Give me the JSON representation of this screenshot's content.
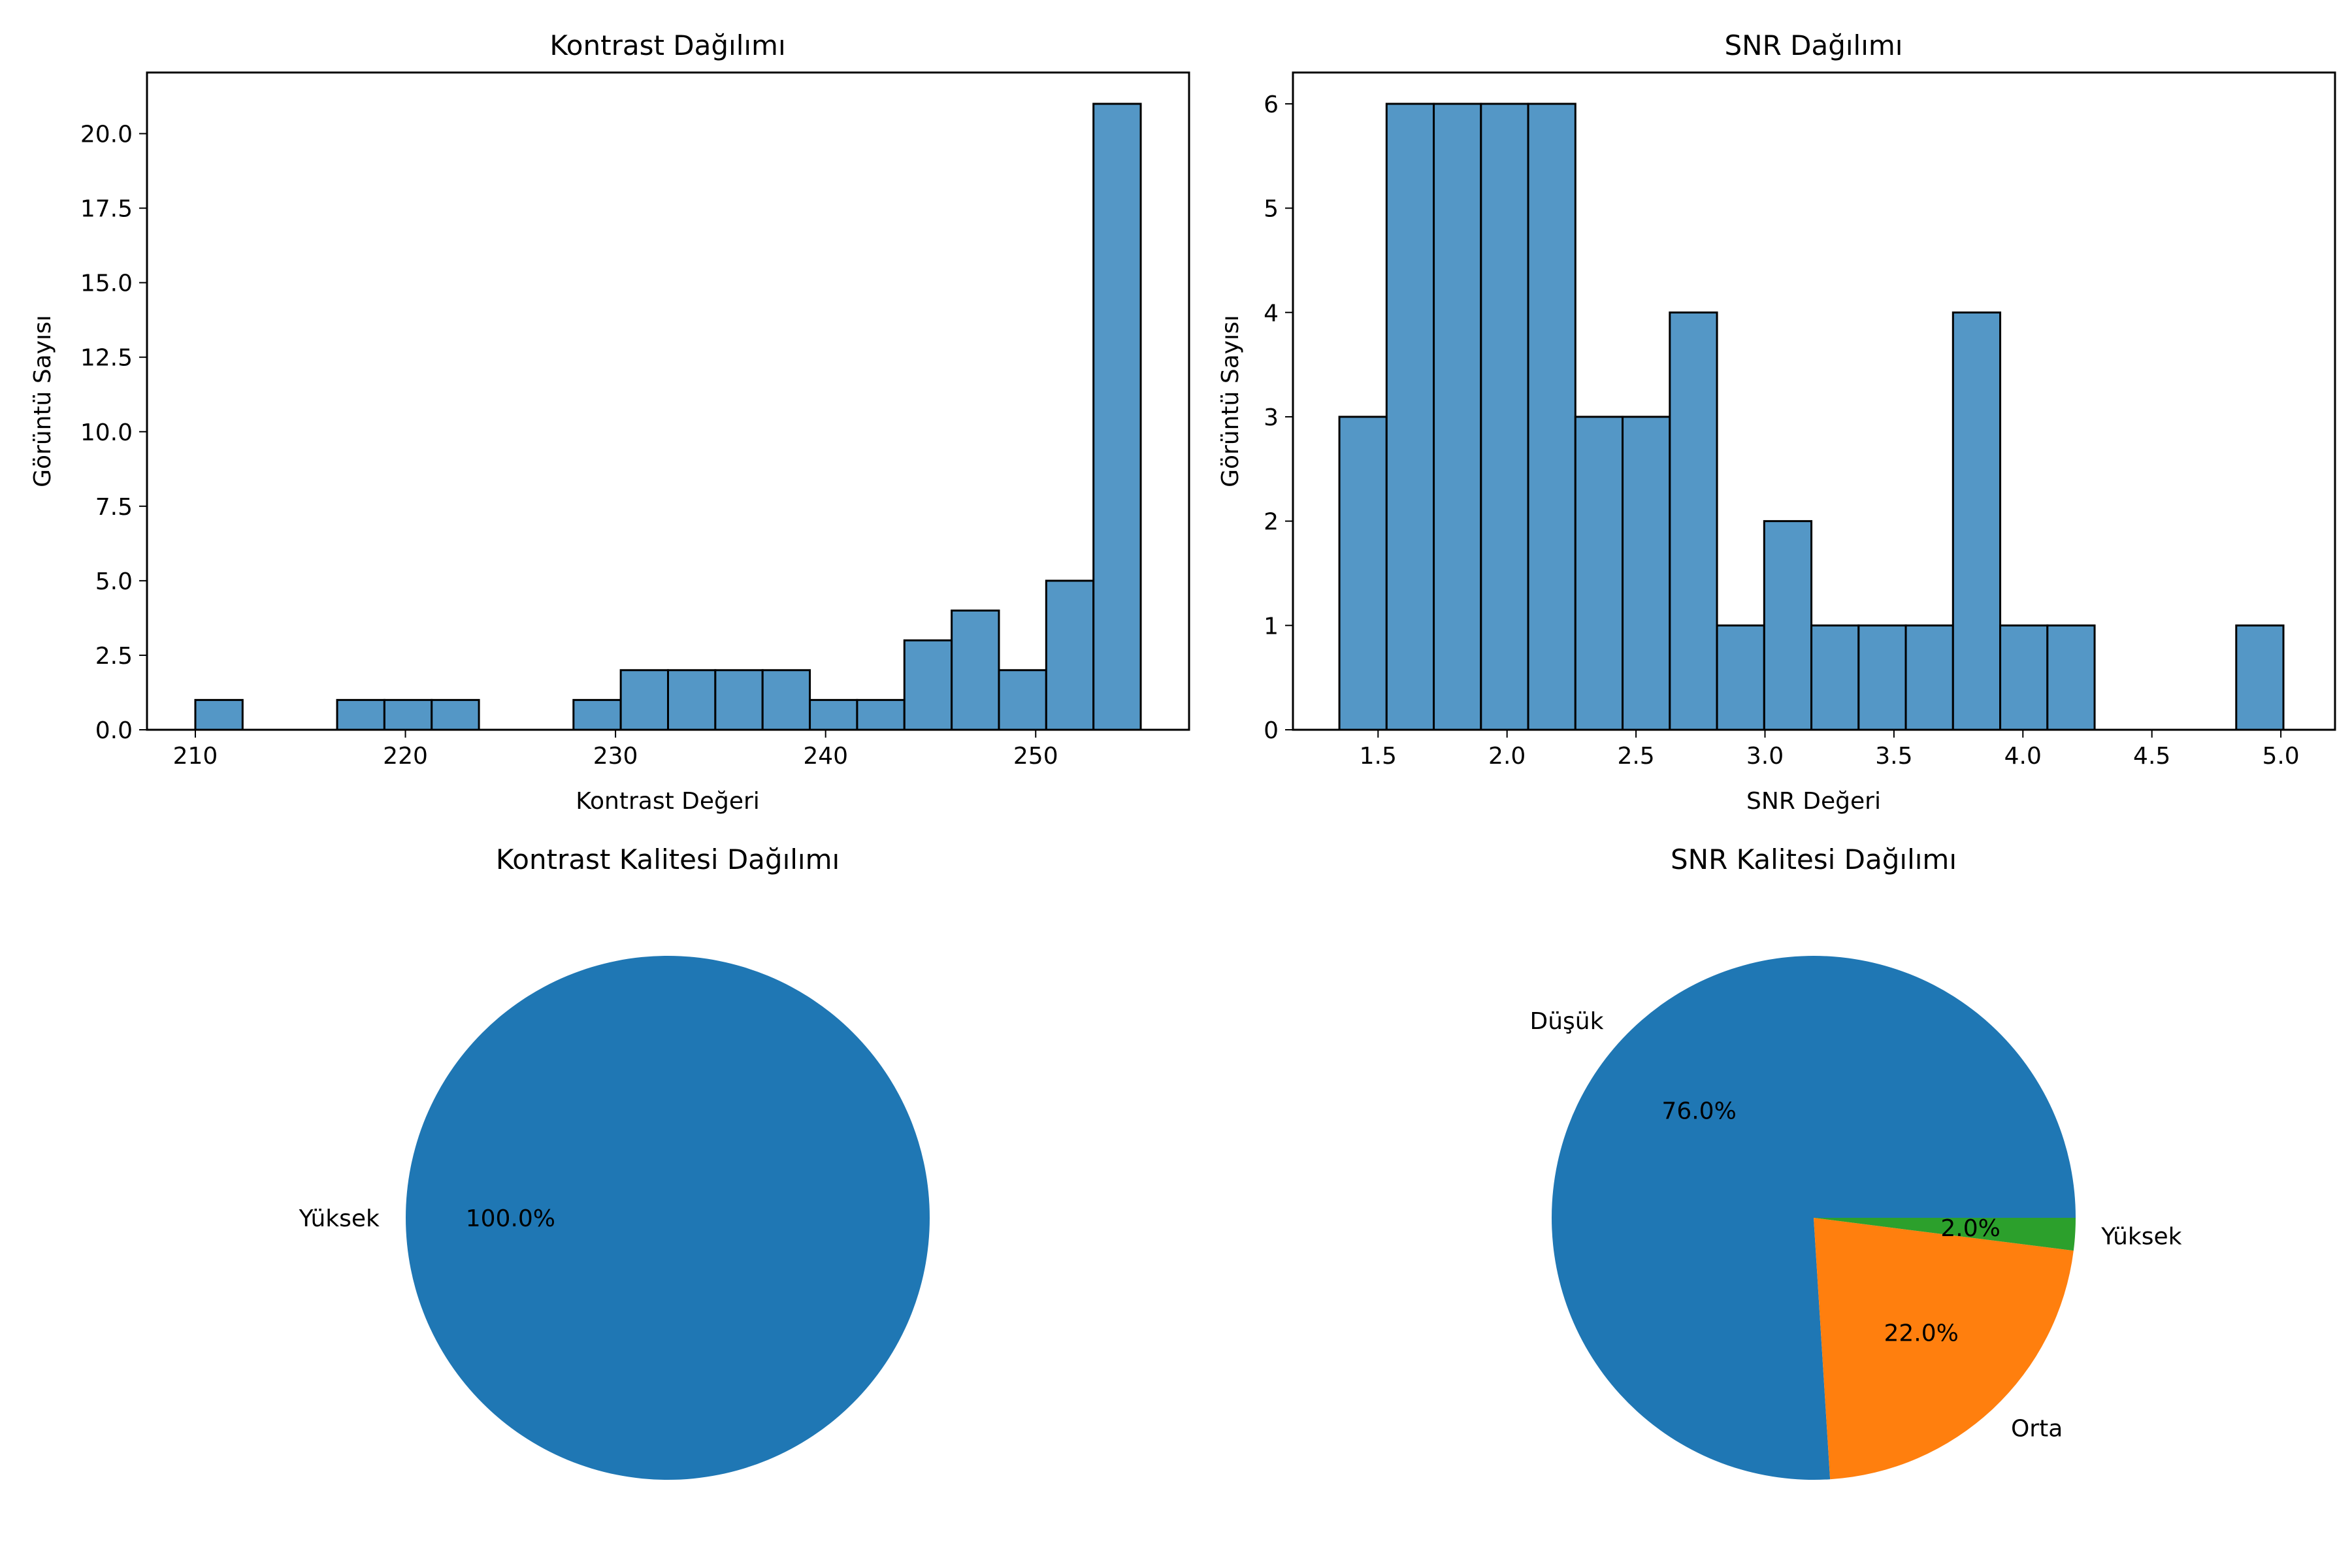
{
  "chart_data": [
    {
      "type": "bar",
      "title": "Kontrast Dağılımı",
      "xlabel": "Kontrast Değeri",
      "ylabel": "Görüntü Sayısı",
      "xlim": [
        207.7,
        257.3
      ],
      "ylim": [
        0,
        22.05
      ],
      "bin_edges": [
        210.0,
        212.25,
        214.5,
        216.75,
        219.0,
        221.25,
        223.5,
        225.75,
        228.0,
        230.25,
        232.5,
        234.75,
        237.0,
        239.25,
        241.5,
        243.75,
        246.0,
        248.25,
        250.5,
        252.75,
        255.0
      ],
      "values": [
        1,
        0,
        0,
        1,
        1,
        1,
        0,
        0,
        1,
        2,
        2,
        2,
        2,
        1,
        1,
        3,
        4,
        2,
        5,
        21
      ],
      "xticks": [
        210,
        220,
        230,
        240,
        250
      ],
      "xtick_labels": [
        "210",
        "220",
        "230",
        "240",
        "250"
      ],
      "yticks": [
        0,
        2.5,
        5,
        7.5,
        10,
        12.5,
        15,
        17.5,
        20
      ],
      "ytick_labels": [
        "0.0",
        "2.5",
        "5.0",
        "7.5",
        "10.0",
        "12.5",
        "15.0",
        "17.5",
        "20.0"
      ],
      "bar_color": "#5497c6",
      "grid": false
    },
    {
      "type": "bar",
      "title": "SNR Dağılımı",
      "xlabel": "SNR Değeri",
      "ylabel": "Görüntü Sayısı",
      "xlim": [
        1.17,
        5.21
      ],
      "ylim": [
        0,
        6.3
      ],
      "bin_edges": [
        1.35,
        1.533,
        1.716,
        1.899,
        2.082,
        2.265,
        2.448,
        2.631,
        2.814,
        2.997,
        3.18,
        3.363,
        3.546,
        3.729,
        3.912,
        4.095,
        4.278,
        4.461,
        4.644,
        4.827,
        5.01
      ],
      "values": [
        3,
        6,
        6,
        6,
        6,
        3,
        3,
        4,
        1,
        2,
        1,
        1,
        1,
        4,
        1,
        1,
        0,
        0,
        0,
        1
      ],
      "xticks": [
        1.5,
        2.0,
        2.5,
        3.0,
        3.5,
        4.0,
        4.5,
        5.0
      ],
      "xtick_labels": [
        "1.5",
        "2.0",
        "2.5",
        "3.0",
        "3.5",
        "4.0",
        "4.5",
        "5.0"
      ],
      "yticks": [
        0,
        1,
        2,
        3,
        4,
        5,
        6
      ],
      "ytick_labels": [
        "0",
        "1",
        "2",
        "3",
        "4",
        "5",
        "6"
      ],
      "bar_color": "#5497c6",
      "grid": false
    },
    {
      "type": "pie",
      "title": "Kontrast Kalitesi Dağılımı",
      "slices": [
        {
          "label": "Yüksek",
          "value": 100.0,
          "pct_label": "100.0%",
          "color": "#1f77b4"
        }
      ]
    },
    {
      "type": "pie",
      "title": "SNR Kalitesi Dağılımı",
      "slices": [
        {
          "label": "Düşük",
          "value": 76.0,
          "pct_label": "76.0%",
          "color": "#1f77b4"
        },
        {
          "label": "Orta",
          "value": 22.0,
          "pct_label": "22.0%",
          "color": "#ff7f0e"
        },
        {
          "label": "Yüksek",
          "value": 2.0,
          "pct_label": "2.0%",
          "color": "#2ca02c"
        }
      ]
    }
  ]
}
